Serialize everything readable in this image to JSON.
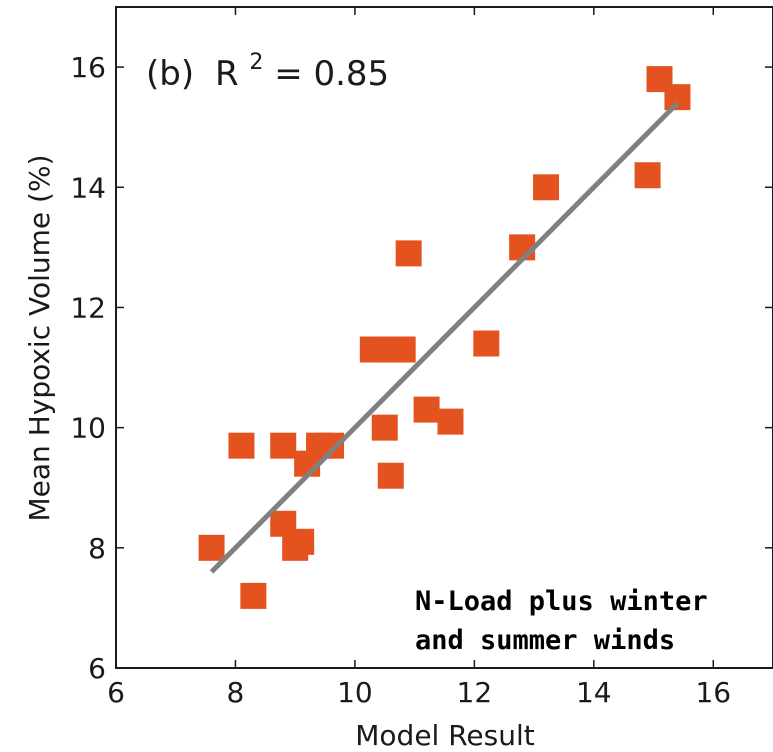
{
  "chart_data": {
    "type": "scatter",
    "panel_label": "(b)",
    "r_squared_text": "R",
    "r_squared_exp": "2",
    "r_squared_value": " = 0.85",
    "xlabel": "Model Result",
    "ylabel": "Mean Hypoxic Volume (%)",
    "xlim": [
      6,
      17
    ],
    "ylim": [
      6,
      17
    ],
    "xticks": [
      6,
      8,
      10,
      12,
      14,
      16
    ],
    "yticks": [
      6,
      8,
      10,
      12,
      14,
      16
    ],
    "annotation": [
      "N-Load plus winter",
      "and summer winds"
    ],
    "marker_color": "#e4531f",
    "fit_line_color": "#808080",
    "fit_line": {
      "x": [
        7.6,
        15.4
      ],
      "y": [
        7.6,
        15.4
      ]
    },
    "series": [
      {
        "x": [
          7.6,
          8.1,
          8.3,
          8.8,
          8.8,
          9.0,
          9.1,
          9.2,
          9.4,
          9.6,
          10.3,
          10.5,
          10.6,
          10.6,
          10.8,
          10.9,
          11.2,
          11.6,
          12.2,
          12.8,
          13.2,
          14.9,
          15.1,
          15.4
        ],
        "y": [
          8.0,
          9.7,
          7.2,
          9.7,
          8.4,
          8.0,
          8.1,
          9.4,
          9.7,
          9.7,
          11.3,
          10.0,
          11.3,
          9.2,
          11.3,
          12.9,
          10.3,
          10.1,
          11.4,
          13.0,
          14.0,
          14.2,
          15.8,
          15.5
        ]
      }
    ]
  }
}
